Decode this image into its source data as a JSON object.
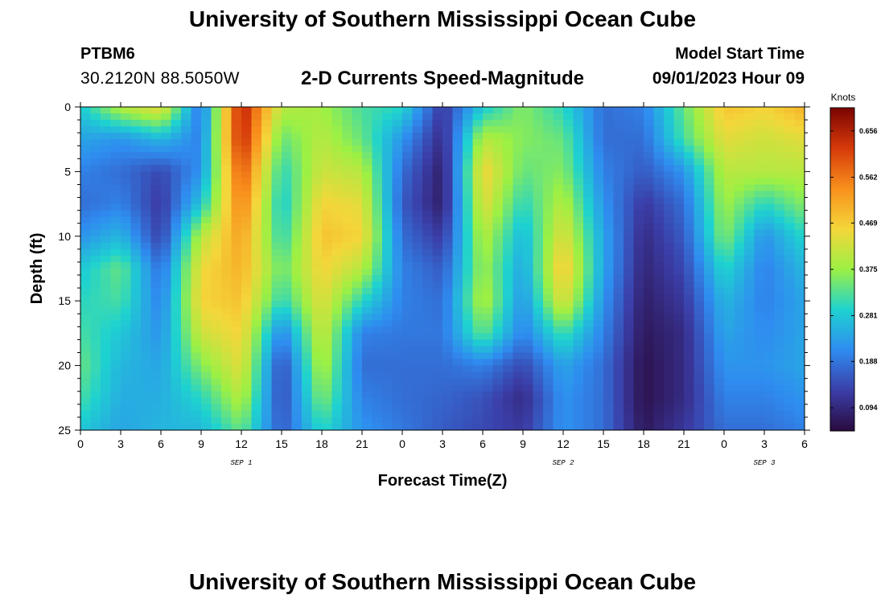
{
  "page": {
    "title": "University of Southern Mississippi Ocean Cube",
    "title_bottom": "University of Southern Mississippi Ocean Cube",
    "station": "PTBM6",
    "coords": "30.2120N  88.5050W",
    "subtitle": "2-D Currents Speed-Magnitude",
    "model_label": "Model Start Time",
    "model_time": "09/01/2023 Hour 09"
  },
  "chart_data": {
    "type": "heatmap",
    "title": "2-D Currents Speed-Magnitude",
    "xlabel": "Forecast Time(Z)",
    "ylabel": "Depth (ft)",
    "x_tick_labels": [
      "0",
      "3",
      "6",
      "9",
      "12",
      "15",
      "18",
      "21",
      "0",
      "3",
      "6",
      "9",
      "12",
      "15",
      "18",
      "21",
      "0",
      "3",
      "6"
    ],
    "x_date_labels": [
      {
        "label": "SEP 1",
        "at_tick": 4
      },
      {
        "label": "SEP 2",
        "at_tick": 12
      },
      {
        "label": "SEP 3",
        "at_tick": 17
      }
    ],
    "xlim_hours": [
      0,
      54
    ],
    "ylim_ft": [
      0,
      25
    ],
    "y_ticks": [
      0,
      5,
      10,
      15,
      20,
      25
    ],
    "y_inverted": true,
    "colorbar": {
      "title": "Knots",
      "ticks": [
        0.094,
        0.188,
        0.281,
        0.375,
        0.469,
        0.562,
        0.656
      ],
      "range": [
        0.047,
        0.703
      ],
      "colors": [
        "#2a0a3e",
        "#3b3ea8",
        "#2f8cf0",
        "#1ed2d0",
        "#9cf044",
        "#f4d63a",
        "#f8901c",
        "#d63a0a",
        "#7a0402"
      ]
    },
    "x_hours": [
      0,
      3,
      6,
      9,
      12,
      15,
      18,
      21,
      24,
      27,
      30,
      33,
      36,
      39,
      42,
      45,
      48,
      51,
      54
    ],
    "depth_ft": [
      0,
      2.5,
      5,
      7.5,
      10,
      12.5,
      15,
      17.5,
      20,
      22.5,
      25
    ],
    "speed_knots": [
      [
        0.28,
        0.24,
        0.2,
        0.18,
        0.22,
        0.28,
        0.3,
        0.32,
        0.34,
        0.32,
        0.28
      ],
      [
        0.4,
        0.22,
        0.18,
        0.2,
        0.26,
        0.34,
        0.32,
        0.28,
        0.26,
        0.25,
        0.24
      ],
      [
        0.45,
        0.26,
        0.14,
        0.12,
        0.13,
        0.18,
        0.2,
        0.22,
        0.24,
        0.25,
        0.26
      ],
      [
        0.18,
        0.2,
        0.22,
        0.28,
        0.4,
        0.45,
        0.46,
        0.42,
        0.36,
        0.3,
        0.26
      ],
      [
        0.66,
        0.65,
        0.6,
        0.56,
        0.52,
        0.5,
        0.48,
        0.46,
        0.44,
        0.4,
        0.34
      ],
      [
        0.4,
        0.34,
        0.3,
        0.28,
        0.3,
        0.34,
        0.3,
        0.2,
        0.14,
        0.14,
        0.16
      ],
      [
        0.38,
        0.4,
        0.42,
        0.46,
        0.48,
        0.46,
        0.44,
        0.42,
        0.4,
        0.36,
        0.3
      ],
      [
        0.32,
        0.34,
        0.4,
        0.44,
        0.46,
        0.4,
        0.3,
        0.2,
        0.18,
        0.2,
        0.22
      ],
      [
        0.3,
        0.22,
        0.18,
        0.16,
        0.18,
        0.2,
        0.2,
        0.19,
        0.18,
        0.18,
        0.19
      ],
      [
        0.12,
        0.1,
        0.08,
        0.08,
        0.12,
        0.16,
        0.18,
        0.19,
        0.18,
        0.17,
        0.16
      ],
      [
        0.28,
        0.4,
        0.46,
        0.44,
        0.4,
        0.38,
        0.4,
        0.34,
        0.2,
        0.15,
        0.14
      ],
      [
        0.36,
        0.36,
        0.34,
        0.3,
        0.26,
        0.24,
        0.22,
        0.2,
        0.14,
        0.1,
        0.12
      ],
      [
        0.3,
        0.34,
        0.36,
        0.4,
        0.44,
        0.48,
        0.44,
        0.32,
        0.24,
        0.22,
        0.22
      ],
      [
        0.18,
        0.18,
        0.2,
        0.22,
        0.24,
        0.24,
        0.22,
        0.2,
        0.18,
        0.18,
        0.18
      ],
      [
        0.2,
        0.18,
        0.16,
        0.12,
        0.1,
        0.09,
        0.08,
        0.07,
        0.06,
        0.06,
        0.07
      ],
      [
        0.34,
        0.32,
        0.22,
        0.18,
        0.16,
        0.14,
        0.12,
        0.1,
        0.1,
        0.1,
        0.12
      ],
      [
        0.48,
        0.44,
        0.4,
        0.38,
        0.36,
        0.3,
        0.26,
        0.24,
        0.22,
        0.2,
        0.18
      ],
      [
        0.46,
        0.42,
        0.4,
        0.3,
        0.22,
        0.2,
        0.2,
        0.21,
        0.22,
        0.2,
        0.18
      ],
      [
        0.5,
        0.44,
        0.4,
        0.36,
        0.3,
        0.26,
        0.24,
        0.24,
        0.24,
        0.22,
        0.2
      ]
    ]
  }
}
